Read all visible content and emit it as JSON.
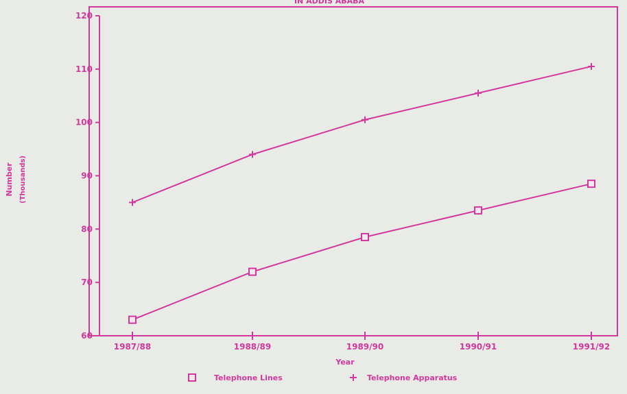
{
  "chart_data": {
    "type": "line",
    "title": "IN ADDIS ABABA",
    "xlabel": "Year",
    "ylabel": "Number",
    "ylabel_unit": "(Thousands)",
    "categories": [
      "1987/88",
      "1988/89",
      "1989/90",
      "1990/91",
      "1991/92"
    ],
    "ylim": [
      60,
      120
    ],
    "yticks": [
      60,
      70,
      80,
      90,
      100,
      110,
      120
    ],
    "grid": false,
    "legend_position": "bottom",
    "series": [
      {
        "name": "Telephone Lines",
        "marker": "square",
        "values": [
          63,
          72,
          78.5,
          83.5,
          88.5
        ]
      },
      {
        "name": "Telephone Apparatus",
        "marker": "plus",
        "values": [
          85,
          94,
          100.5,
          105.5,
          110.5
        ]
      }
    ],
    "colors": {
      "ink": "#d2389c",
      "background": "#e9ebe6"
    }
  }
}
